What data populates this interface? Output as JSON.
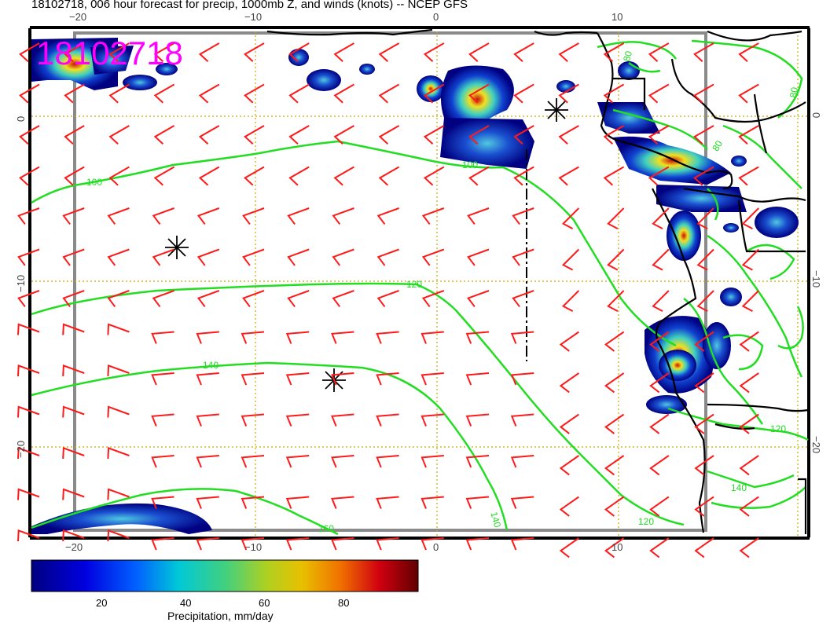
{
  "title": "18102718, 006 hour forecast for precip, 1000mb Z, and winds (knots) -- NCEP GFS",
  "stamp": "18102718",
  "x_ticks_top": [
    "−20",
    "−10",
    "0",
    "10"
  ],
  "x_ticks_bottom": [
    "−20",
    "−10",
    "0",
    "10"
  ],
  "y_ticks_left": [
    "0",
    "−10",
    "−20"
  ],
  "y_ticks_right": [
    "0",
    "−10",
    "−20"
  ],
  "contour_labels": [
    "100",
    "100",
    "120",
    "140",
    "120",
    "140",
    "160",
    "120",
    "140",
    "80",
    "80",
    "80"
  ],
  "colorbar": {
    "label": "Precipitation, mm/day",
    "ticks": [
      "20",
      "40",
      "60",
      "80"
    ]
  },
  "colors": {
    "wind_barb": "#ff1a1a",
    "contour": "#22dd22",
    "stamp": "#ff00ff",
    "grid": "#ccaa00",
    "frame": "#808080"
  }
}
